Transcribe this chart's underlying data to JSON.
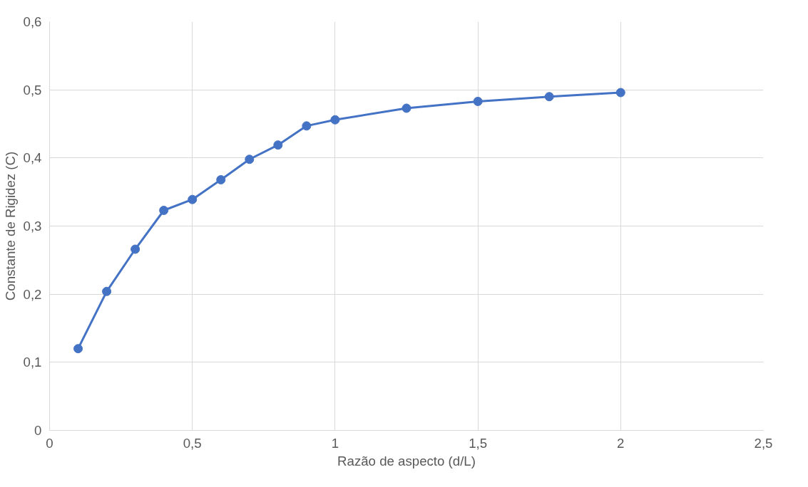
{
  "chart_data": {
    "type": "line",
    "xlabel": "Razão de aspecto (d/L)",
    "ylabel": "Constante de Rigidez (C)",
    "x": [
      0.1,
      0.2,
      0.3,
      0.4,
      0.5,
      0.6,
      0.7,
      0.8,
      0.9,
      1.0,
      1.25,
      1.5,
      1.75,
      2.0
    ],
    "series": [
      {
        "color": "#4472c4",
        "values": [
          0.12,
          0.204,
          0.266,
          0.323,
          0.339,
          0.368,
          0.398,
          0.419,
          0.447,
          0.456,
          0.473,
          0.483,
          0.49,
          0.496
        ]
      }
    ],
    "xlim": [
      0,
      2.5
    ],
    "ylim": [
      0,
      0.6
    ],
    "xticks": [
      0,
      {
        "value": 0.5,
        "label": "0,5"
      },
      1,
      {
        "value": 1.5,
        "label": "1,5"
      },
      2,
      {
        "value": 2.5,
        "label": "2,5"
      }
    ],
    "yticks": [
      0,
      {
        "value": 0.1,
        "label": "0,1"
      },
      {
        "value": 0.2,
        "label": "0,2"
      },
      {
        "value": 0.3,
        "label": "0,3"
      },
      {
        "value": 0.4,
        "label": "0,4"
      },
      {
        "value": 0.5,
        "label": "0,5"
      },
      {
        "value": 0.6,
        "label": "0,6"
      }
    ],
    "grid": true,
    "marker": "circle",
    "line_style": "solid"
  }
}
